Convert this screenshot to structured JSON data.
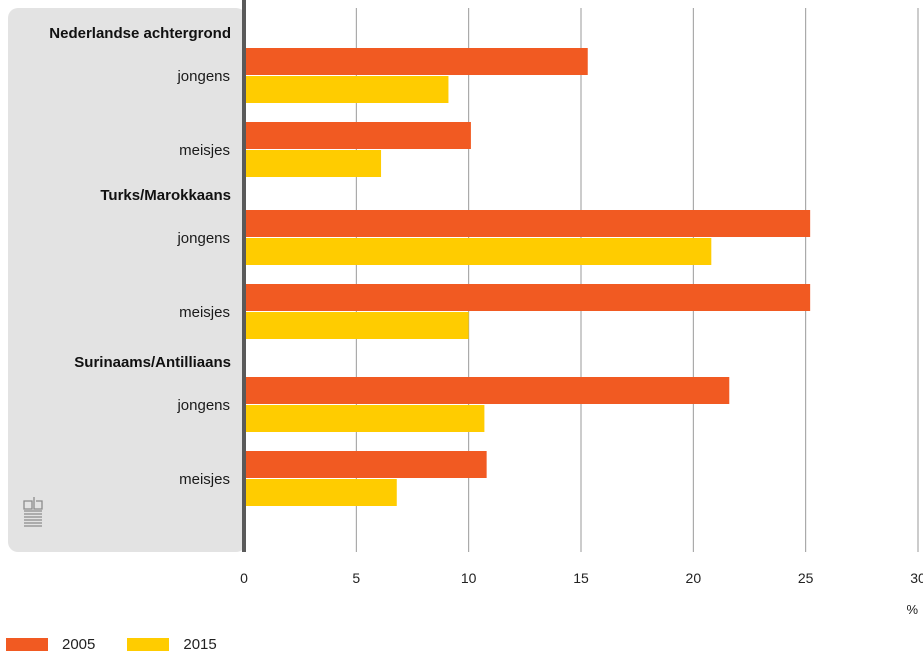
{
  "chart_data": {
    "type": "bar",
    "orientation": "horizontal",
    "groups": [
      {
        "label": "Nederlandse achtergrond",
        "categories": [
          {
            "label": "jongens",
            "values": [
              15.3,
              9.1
            ]
          },
          {
            "label": "meisjes",
            "values": [
              10.1,
              6.1
            ]
          }
        ]
      },
      {
        "label": "Turks/Marokkaans",
        "categories": [
          {
            "label": "jongens",
            "values": [
              25.2,
              20.8
            ]
          },
          {
            "label": "meisjes",
            "values": [
              25.2,
              10.0
            ]
          }
        ]
      },
      {
        "label": "Surinaams/Antilliaans",
        "categories": [
          {
            "label": "jongens",
            "values": [
              21.6,
              10.7
            ]
          },
          {
            "label": "meisjes",
            "values": [
              10.8,
              6.8
            ]
          }
        ]
      }
    ],
    "series": [
      {
        "name": "2005",
        "color": "#f15a22"
      },
      {
        "name": "2015",
        "color": "#ffcc00"
      }
    ],
    "xlim": [
      0,
      30
    ],
    "xticks": [
      "0",
      "5",
      "10",
      "15",
      "20",
      "25",
      "30"
    ],
    "unit": "%",
    "grid": true,
    "legend": "bottom-left"
  },
  "logo": "cbs-logo-icon"
}
